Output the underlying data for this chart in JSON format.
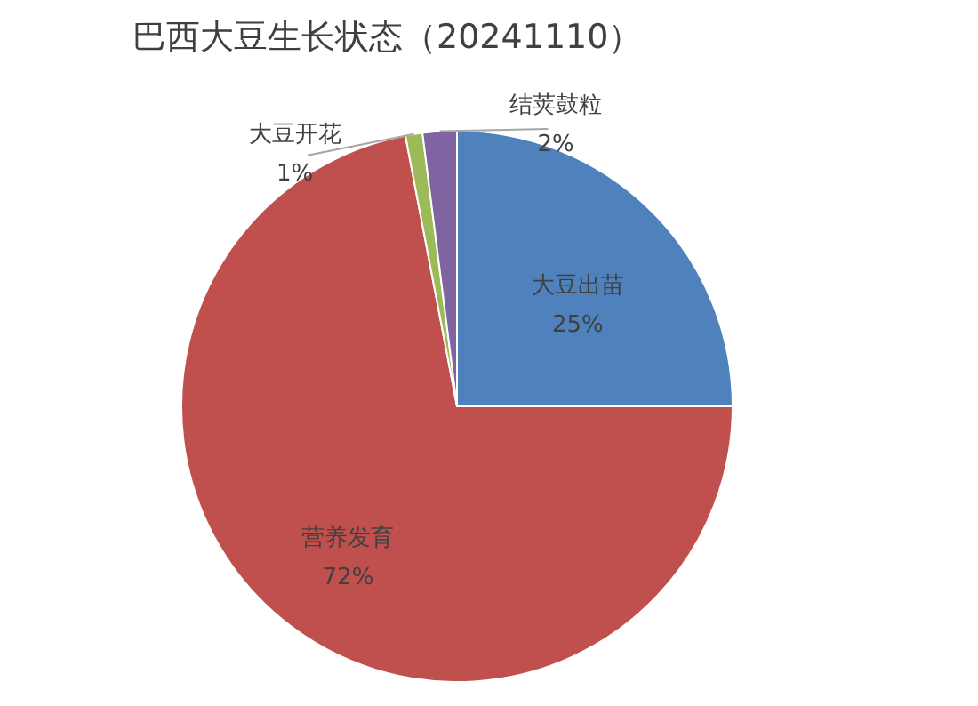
{
  "chart_data": {
    "type": "pie",
    "title": "巴西大豆生长状态（20241110）",
    "categories": [
      "大豆出苗",
      "营养发育",
      "大豆开花",
      "结荚鼓粒"
    ],
    "values": [
      25,
      72,
      1,
      2
    ],
    "value_labels": [
      "25%",
      "72%",
      "1%",
      "2%"
    ],
    "colors": [
      "#4f81bd",
      "#c0504d",
      "#9bbb59",
      "#8064a2"
    ],
    "legend": false
  }
}
